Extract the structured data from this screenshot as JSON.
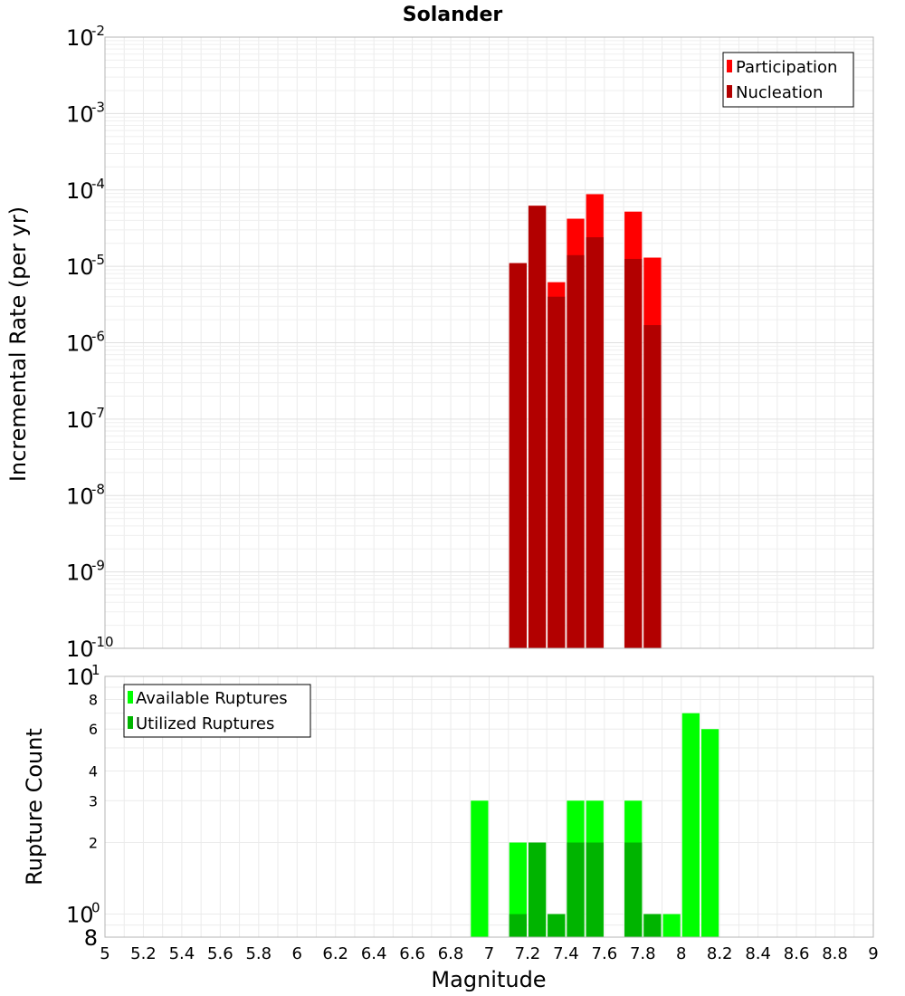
{
  "chart_data": [
    {
      "id": "rate-panel",
      "type": "bar",
      "title": "Solander",
      "xlabel": "",
      "ylabel": "Incremental Rate (per yr)",
      "xlim": [
        5,
        9
      ],
      "ylim": [
        1e-10,
        0.01
      ],
      "yscale": "log",
      "grid": true,
      "legend_position": "top-right",
      "ytick_bases": [
        "10",
        "10",
        "10",
        "10",
        "10",
        "10",
        "10",
        "10",
        "10"
      ],
      "ytick_exponents": [
        "-2",
        "-3",
        "-4",
        "-5",
        "-6",
        "-7",
        "-8",
        "-9",
        "-10"
      ],
      "series": [
        {
          "name": "Participation",
          "color": "#ff0000",
          "x": [
            7.15,
            7.25,
            7.35,
            7.45,
            7.55,
            7.75,
            7.85
          ],
          "values": [
            1.1e-05,
            6.2e-05,
            6.2e-06,
            4.2e-05,
            8.8e-05,
            5.2e-05,
            1.3e-05
          ]
        },
        {
          "name": "Nucleation",
          "color": "#b20000",
          "x": [
            7.15,
            7.25,
            7.35,
            7.45,
            7.55,
            7.75,
            7.85
          ],
          "values": [
            1.1e-05,
            6.2e-05,
            4e-06,
            1.4e-05,
            2.4e-05,
            1.25e-05,
            1.7e-06
          ]
        }
      ]
    },
    {
      "id": "count-panel",
      "type": "bar",
      "title": "",
      "xlabel": "Magnitude",
      "ylabel": "Rupture Count",
      "xlim": [
        5,
        9
      ],
      "ylim": [
        0.8,
        10
      ],
      "yscale": "log",
      "grid": true,
      "legend_position": "top-left",
      "ytick_top_base": "10",
      "ytick_top_exp": "1",
      "ytick_minor_labels": [
        "8",
        "6",
        "4",
        "3",
        "2"
      ],
      "ytick_mid_base": "10",
      "ytick_mid_exp": "0",
      "ytick_bottom_label": "8",
      "series": [
        {
          "name": "Available Ruptures",
          "color": "#00ff00",
          "x": [
            6.95,
            7.15,
            7.25,
            7.35,
            7.45,
            7.55,
            7.75,
            7.85,
            7.95,
            8.05,
            8.15
          ],
          "values": [
            3,
            2,
            2,
            1,
            3,
            3,
            3,
            1,
            1,
            7,
            6
          ]
        },
        {
          "name": "Utilized Ruptures",
          "color": "#00b400",
          "x": [
            7.15,
            7.25,
            7.35,
            7.45,
            7.55,
            7.75,
            7.85
          ],
          "values": [
            1,
            2,
            1,
            2,
            2,
            2,
            1
          ]
        }
      ]
    }
  ],
  "x_tick_labels": [
    "5",
    "5.2",
    "5.4",
    "5.6",
    "5.8",
    "6",
    "6.2",
    "6.4",
    "6.6",
    "6.8",
    "7",
    "7.2",
    "7.4",
    "7.6",
    "7.8",
    "8",
    "8.2",
    "8.4",
    "8.6",
    "8.8",
    "9"
  ]
}
